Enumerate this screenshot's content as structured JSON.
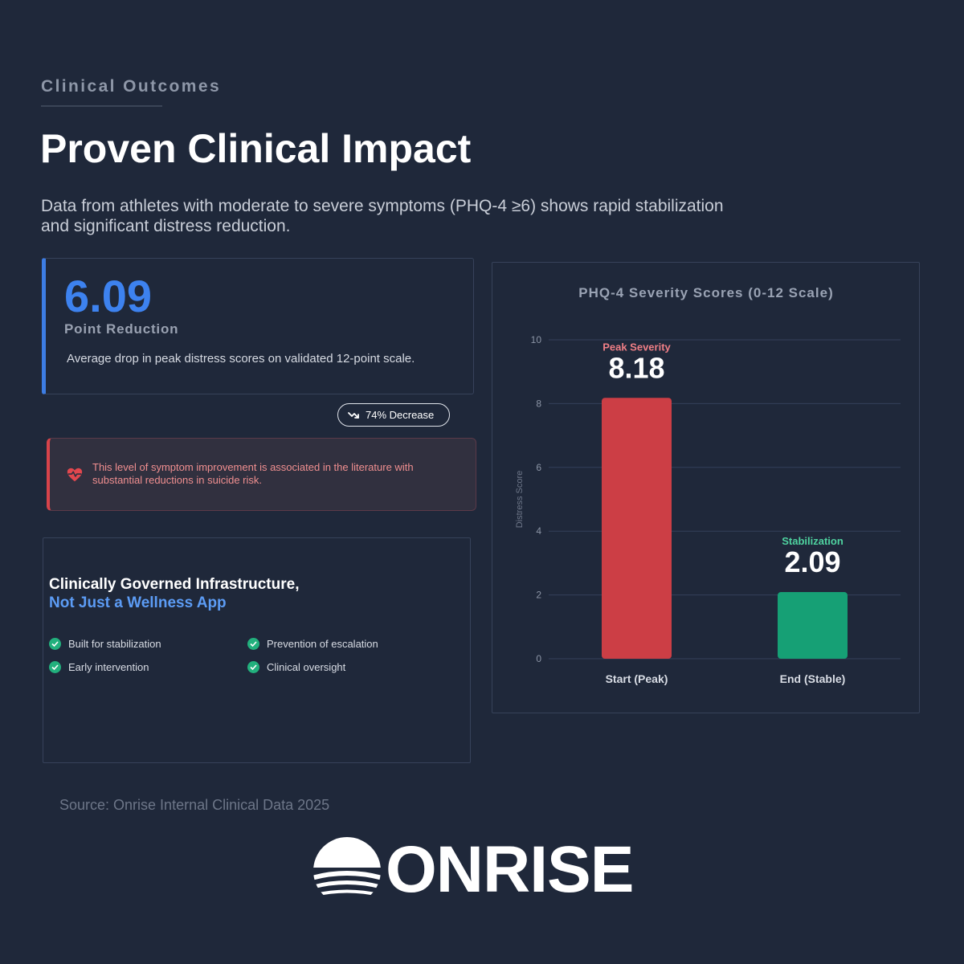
{
  "header": {
    "eyebrow": "Clinical Outcomes",
    "title": "Proven Clinical Impact",
    "subtitle": "Data from athletes with moderate to severe symptoms (PHQ-4 ≥6) shows rapid stabilization and significant distress reduction."
  },
  "stat": {
    "value": "6.09",
    "label": "Point Reduction",
    "description": "Average drop in peak distress scores on validated 12-point scale.",
    "badge": "74% Decrease"
  },
  "alert": {
    "icon": "heart-pulse-icon",
    "text": "This level of symptom improvement is associated in the literature with substantial reductions in suicide risk."
  },
  "infra": {
    "title": "Clinically Governed Infrastructure,",
    "subtitle": "Not Just a Wellness App",
    "features": [
      "Built for stabilization",
      "Prevention of escalation",
      "Early intervention",
      "Clinical oversight"
    ]
  },
  "source": "Source: Onrise Internal Clinical Data 2025",
  "logo": {
    "text": "ONRISE"
  },
  "colors": {
    "accent_blue": "#3d82ef",
    "peak_red": "#cc3e45",
    "stable_green": "#16a075",
    "background": "#1f283a"
  },
  "chart_data": {
    "type": "bar",
    "title": "PHQ-4 Severity Scores (0-12 Scale)",
    "ylabel": "Distress Score",
    "xlabel": "",
    "ylim": [
      0,
      10
    ],
    "yticks": [
      0,
      2,
      4,
      6,
      8,
      10
    ],
    "grid": true,
    "categories": [
      "Start (Peak)",
      "End (Stable)"
    ],
    "values": [
      8.18,
      2.09
    ],
    "value_labels": [
      "8.18",
      "2.09"
    ],
    "annotations": [
      "Peak Severity",
      "Stabilization"
    ],
    "bar_colors": [
      "#cc3e45",
      "#16a075"
    ],
    "annotation_colors": [
      "#f07f86",
      "#4fd3a0"
    ]
  }
}
